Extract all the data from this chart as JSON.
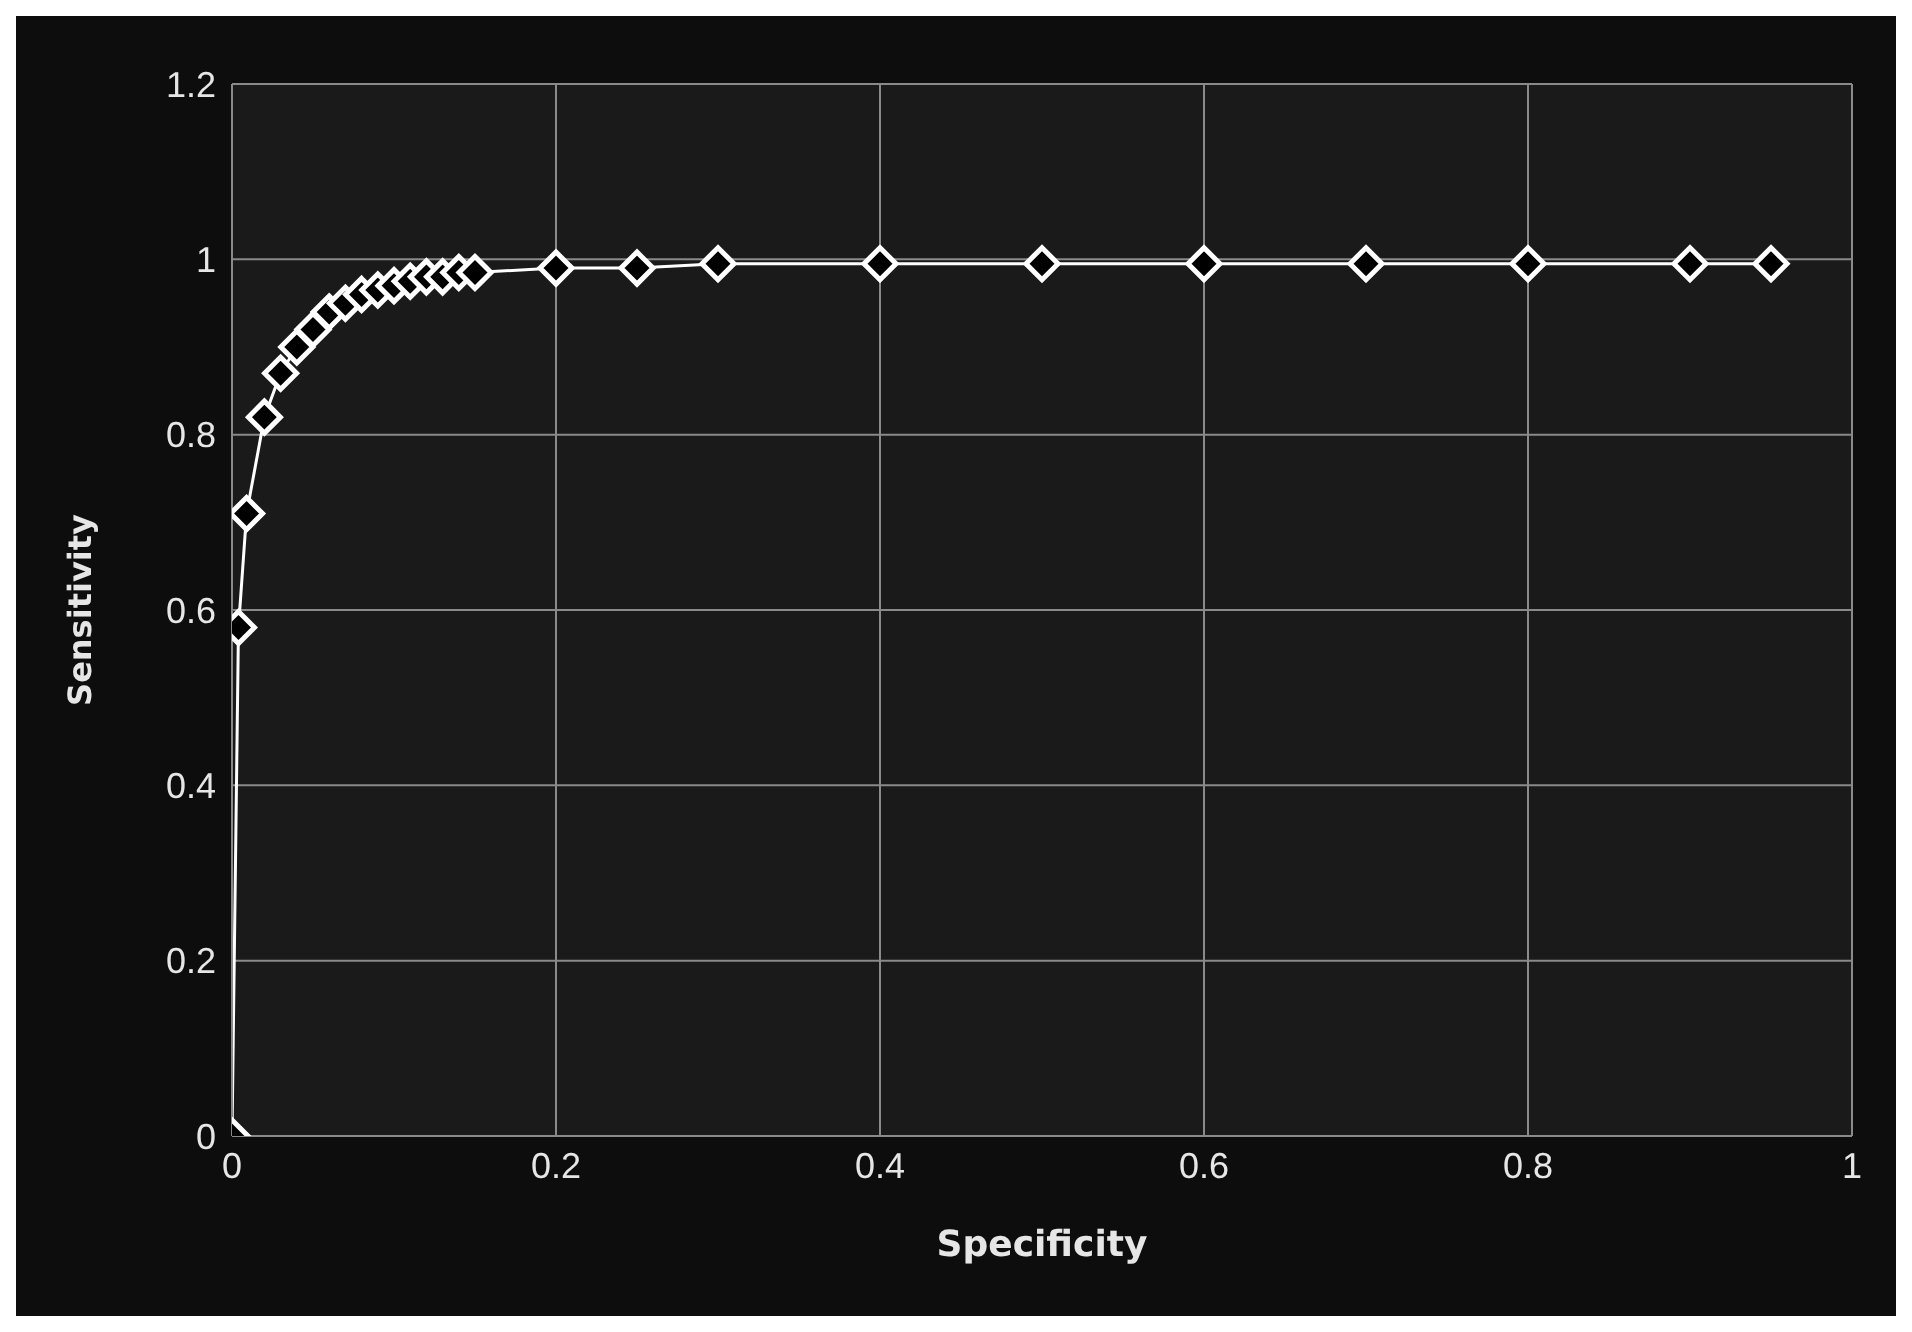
{
  "chart_data": {
    "type": "line",
    "xlabel": "Specificity",
    "ylabel": "Sensitivity",
    "x": [
      0,
      0.004,
      0.009,
      0.02,
      0.03,
      0.04,
      0.05,
      0.06,
      0.07,
      0.08,
      0.09,
      0.1,
      0.11,
      0.12,
      0.13,
      0.14,
      0.15,
      0.2,
      0.25,
      0.3,
      0.4,
      0.5,
      0.6,
      0.7,
      0.8,
      0.9,
      0.95
    ],
    "series": [
      {
        "color": "#ffffff",
        "values": [
          0,
          0.58,
          0.71,
          0.82,
          0.87,
          0.9,
          0.92,
          0.94,
          0.95,
          0.96,
          0.965,
          0.97,
          0.975,
          0.98,
          0.98,
          0.985,
          0.985,
          0.99,
          0.99,
          0.995,
          0.995,
          0.995,
          0.995,
          0.995,
          0.995,
          0.995,
          0.995
        ]
      }
    ],
    "xlim": [
      0,
      1
    ],
    "xticks": [
      0,
      0.2,
      0.4,
      0.6,
      0.8,
      1
    ],
    "ylim": [
      0,
      1.2
    ],
    "yticks": [
      0,
      0.2,
      0.4,
      0.6,
      0.8,
      1,
      1.2
    ],
    "grid": true,
    "marker": "diamond",
    "line_style": "solid"
  }
}
